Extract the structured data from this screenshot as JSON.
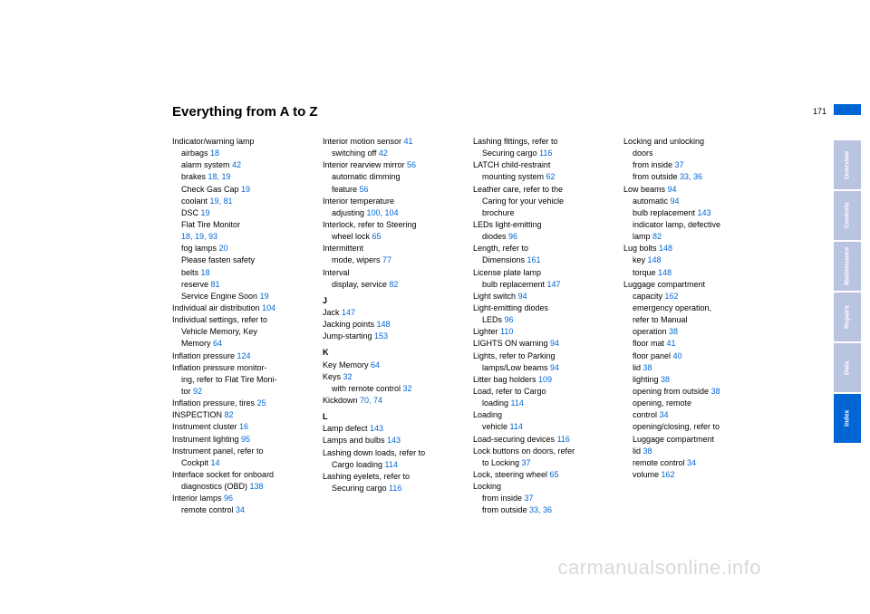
{
  "page_number": "171",
  "title": "Everything from A to Z",
  "watermark": "carmanualsonline.info",
  "tabs": [
    {
      "label": "Overview",
      "bg": "#b8c4e0"
    },
    {
      "label": "Controls",
      "bg": "#b8c4e0"
    },
    {
      "label": "Maintenance",
      "bg": "#b8c4e0"
    },
    {
      "label": "Repairs",
      "bg": "#b8c4e0"
    },
    {
      "label": "Data",
      "bg": "#b8c4e0"
    },
    {
      "label": "Index",
      "bg": "#0066d6"
    }
  ],
  "columns": [
    [
      {
        "t": "Indicator/warning lamp"
      },
      {
        "t": "airbags ",
        "r": "18",
        "sub": true
      },
      {
        "t": "alarm system ",
        "r": "42",
        "sub": true
      },
      {
        "t": "brakes ",
        "r": "18, 19",
        "sub": true
      },
      {
        "t": "Check Gas Cap ",
        "r": "19",
        "sub": true
      },
      {
        "t": "coolant ",
        "r": "19, 81",
        "sub": true
      },
      {
        "t": "DSC ",
        "r": "19",
        "sub": true
      },
      {
        "t": "Flat Tire Monitor",
        "sub": true
      },
      {
        "t": "",
        "r": "18, 19, 93",
        "sub": true
      },
      {
        "t": "fog lamps ",
        "r": "20",
        "sub": true
      },
      {
        "t": "Please fasten safety",
        "sub": true
      },
      {
        "t": "belts ",
        "r": "18",
        "sub": true
      },
      {
        "t": "reserve ",
        "r": "81",
        "sub": true
      },
      {
        "t": "Service Engine Soon ",
        "r": "19",
        "sub": true
      },
      {
        "t": "Individual air distribution ",
        "r": "104"
      },
      {
        "t": "Individual settings, refer to"
      },
      {
        "t": "Vehicle Memory, Key",
        "sub": true
      },
      {
        "t": "Memory ",
        "r": "64",
        "sub": true
      },
      {
        "t": "Inflation pressure ",
        "r": "124"
      },
      {
        "t": "Inflation pressure monitor-"
      },
      {
        "t": "ing, refer to Flat Tire Moni-",
        "sub": true
      },
      {
        "t": "tor ",
        "r": "92",
        "sub": true
      },
      {
        "t": "Inflation pressure, tires ",
        "r": "25"
      },
      {
        "t": "INSPECTION ",
        "r": "82"
      },
      {
        "t": "Instrument cluster ",
        "r": "16"
      },
      {
        "t": "Instrument lighting ",
        "r": "95"
      },
      {
        "t": "Instrument panel, refer to"
      },
      {
        "t": "Cockpit ",
        "r": "14",
        "sub": true
      },
      {
        "t": "Interface socket for onboard"
      },
      {
        "t": "diagnostics (OBD) ",
        "r": "138",
        "sub": true
      },
      {
        "t": "Interior lamps ",
        "r": "96"
      },
      {
        "t": "remote control ",
        "r": "34",
        "sub": true
      }
    ],
    [
      {
        "t": "Interior motion sensor ",
        "r": "41"
      },
      {
        "t": "switching off ",
        "r": "42",
        "sub": true
      },
      {
        "t": "Interior rearview mirror ",
        "r": "56"
      },
      {
        "t": "automatic dimming",
        "sub": true
      },
      {
        "t": "feature ",
        "r": "56",
        "sub": true
      },
      {
        "t": "Interior temperature"
      },
      {
        "t": "adjusting ",
        "r": "100, 104",
        "sub": true
      },
      {
        "t": "Interlock, refer to Steering"
      },
      {
        "t": "wheel lock ",
        "r": "65",
        "sub": true
      },
      {
        "t": "Intermittent"
      },
      {
        "t": "mode, wipers ",
        "r": "77",
        "sub": true
      },
      {
        "t": "Interval"
      },
      {
        "t": "display, service ",
        "r": "82",
        "sub": true
      },
      {
        "t": "J",
        "head": true
      },
      {
        "t": "Jack ",
        "r": "147"
      },
      {
        "t": "Jacking points ",
        "r": "148"
      },
      {
        "t": "Jump-starting ",
        "r": "153"
      },
      {
        "t": "K",
        "head": true
      },
      {
        "t": "Key Memory ",
        "r": "64"
      },
      {
        "t": "Keys ",
        "r": "32"
      },
      {
        "t": "with remote control ",
        "r": "32",
        "sub": true
      },
      {
        "t": "Kickdown ",
        "r": "70, 74"
      },
      {
        "t": "L",
        "head": true
      },
      {
        "t": "Lamp defect ",
        "r": "143"
      },
      {
        "t": "Lamps and bulbs ",
        "r": "143"
      },
      {
        "t": "Lashing down loads, refer to"
      },
      {
        "t": "Cargo loading ",
        "r": "114",
        "sub": true
      },
      {
        "t": "Lashing eyelets, refer to"
      },
      {
        "t": "Securing cargo ",
        "r": "116",
        "sub": true
      }
    ],
    [
      {
        "t": "Lashing fittings, refer to"
      },
      {
        "t": "Securing cargo ",
        "r": "116",
        "sub": true
      },
      {
        "t": "LATCH child-restraint"
      },
      {
        "t": "mounting system ",
        "r": "62",
        "sub": true
      },
      {
        "t": "Leather care, refer to the"
      },
      {
        "t": "Caring for your vehicle",
        "sub": true
      },
      {
        "t": "brochure",
        "sub": true
      },
      {
        "t": "LEDs light-emitting"
      },
      {
        "t": "diodes ",
        "r": "96",
        "sub": true
      },
      {
        "t": "Length, refer to"
      },
      {
        "t": "Dimensions ",
        "r": "161",
        "sub": true
      },
      {
        "t": "License plate lamp"
      },
      {
        "t": "bulb replacement ",
        "r": "147",
        "sub": true
      },
      {
        "t": "Light switch ",
        "r": "94"
      },
      {
        "t": "Light-emitting diodes"
      },
      {
        "t": "LEDs ",
        "r": "96",
        "sub": true
      },
      {
        "t": "Lighter ",
        "r": "110"
      },
      {
        "t": "LIGHTS ON warning ",
        "r": "94"
      },
      {
        "t": "Lights, refer to Parking"
      },
      {
        "t": "lamps/Low beams ",
        "r": "94",
        "sub": true
      },
      {
        "t": "Litter bag holders ",
        "r": "109"
      },
      {
        "t": "Load, refer to Cargo"
      },
      {
        "t": "loading ",
        "r": "114",
        "sub": true
      },
      {
        "t": "Loading"
      },
      {
        "t": "vehicle ",
        "r": "114",
        "sub": true
      },
      {
        "t": "Load-securing devices ",
        "r": "116"
      },
      {
        "t": "Lock buttons on doors, refer"
      },
      {
        "t": "to Locking ",
        "r": "37",
        "sub": true
      },
      {
        "t": "Lock, steering wheel ",
        "r": "65"
      },
      {
        "t": "Locking"
      },
      {
        "t": "from inside ",
        "r": "37",
        "sub": true
      },
      {
        "t": "from outside ",
        "r": "33, 36",
        "sub": true
      }
    ],
    [
      {
        "t": "Locking and unlocking"
      },
      {
        "t": "doors",
        "sub": true
      },
      {
        "t": "from inside ",
        "r": "37",
        "sub": true
      },
      {
        "t": "from outside ",
        "r": "33, 36",
        "sub": true
      },
      {
        "t": "Low beams ",
        "r": "94"
      },
      {
        "t": "automatic ",
        "r": "94",
        "sub": true
      },
      {
        "t": "bulb replacement ",
        "r": "143",
        "sub": true
      },
      {
        "t": "indicator lamp, defective",
        "sub": true
      },
      {
        "t": "lamp ",
        "r": "82",
        "sub": true
      },
      {
        "t": "Lug bolts ",
        "r": "148"
      },
      {
        "t": "key ",
        "r": "148",
        "sub": true
      },
      {
        "t": "torque ",
        "r": "148",
        "sub": true
      },
      {
        "t": "Luggage compartment"
      },
      {
        "t": "capacity ",
        "r": "162",
        "sub": true
      },
      {
        "t": "emergency operation,",
        "sub": true
      },
      {
        "t": "refer to Manual",
        "sub": true
      },
      {
        "t": "operation ",
        "r": "38",
        "sub": true
      },
      {
        "t": "floor mat ",
        "r": "41",
        "sub": true
      },
      {
        "t": "floor panel ",
        "r": "40",
        "sub": true
      },
      {
        "t": "lid ",
        "r": "38",
        "sub": true
      },
      {
        "t": "lighting ",
        "r": "38",
        "sub": true
      },
      {
        "t": "opening from outside ",
        "r": "38",
        "sub": true
      },
      {
        "t": "opening, remote",
        "sub": true
      },
      {
        "t": "control ",
        "r": "34",
        "sub": true
      },
      {
        "t": "opening/closing, refer to",
        "sub": true
      },
      {
        "t": "Luggage compartment",
        "sub": true
      },
      {
        "t": "lid ",
        "r": "38",
        "sub": true
      },
      {
        "t": "remote control ",
        "r": "34",
        "sub": true
      },
      {
        "t": "volume ",
        "r": "162",
        "sub": true
      }
    ]
  ]
}
